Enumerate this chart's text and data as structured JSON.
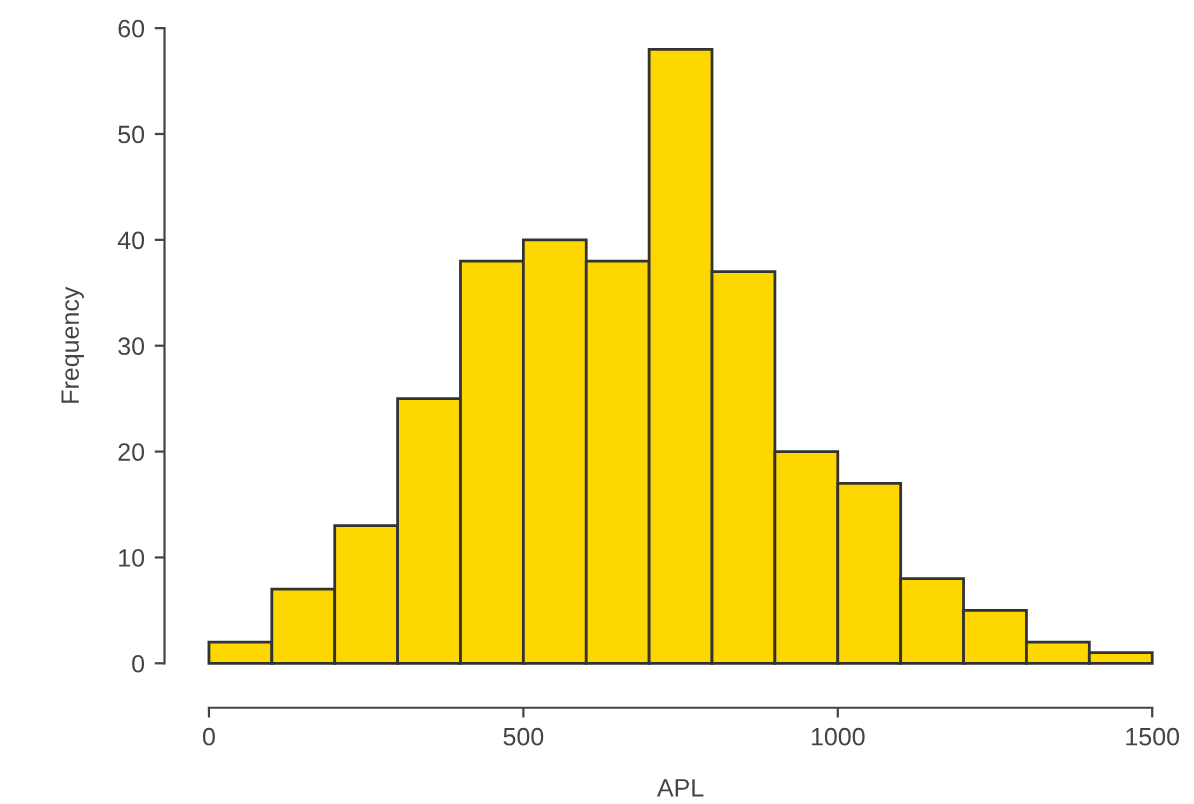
{
  "chart_data": {
    "type": "histogram",
    "xlabel": "APL",
    "ylabel": "Frequency",
    "bins": [
      0,
      100,
      200,
      300,
      400,
      500,
      600,
      700,
      800,
      900,
      1000,
      1100,
      1200,
      1300,
      1400,
      1500
    ],
    "values": [
      2,
      7,
      13,
      25,
      38,
      40,
      38,
      58,
      37,
      20,
      17,
      8,
      5,
      2,
      1
    ],
    "color": "#ffd700",
    "xlim": [
      0,
      1500
    ],
    "ylim": [
      0,
      60
    ],
    "xticks": [
      0,
      500,
      1000,
      1500
    ],
    "yticks": [
      0,
      10,
      20,
      30,
      40,
      50,
      60
    ],
    "grid": false
  }
}
